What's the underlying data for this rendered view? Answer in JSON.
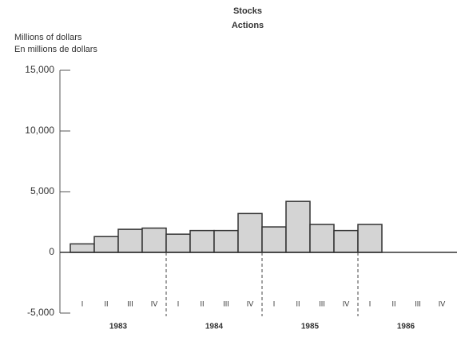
{
  "chart_data": {
    "type": "bar",
    "title": "Stocks",
    "subtitle": "Actions",
    "y_label": [
      "Millions of dollars",
      "En millions de dollars"
    ],
    "categories": [
      "I",
      "II",
      "III",
      "IV",
      "I",
      "II",
      "III",
      "IV",
      "I",
      "II",
      "III",
      "IV",
      "I",
      "II",
      "III",
      "IV"
    ],
    "years": [
      "1983",
      "1984",
      "1985",
      "1986"
    ],
    "values": [
      700,
      1300,
      1900,
      2000,
      1500,
      1800,
      1800,
      3200,
      2100,
      4200,
      2300,
      1800,
      2300,
      null,
      null,
      null
    ],
    "color": "#d4d4d4",
    "ylim": [
      -5000,
      15000
    ],
    "yticks": [
      {
        "value": -5000,
        "label": "-5,000"
      },
      0,
      {
        "value": 5000,
        "label": "5,000"
      },
      {
        "value": 10000,
        "label": "10,000"
      },
      {
        "value": 15000,
        "label": "15,000"
      }
    ],
    "grid": false
  }
}
